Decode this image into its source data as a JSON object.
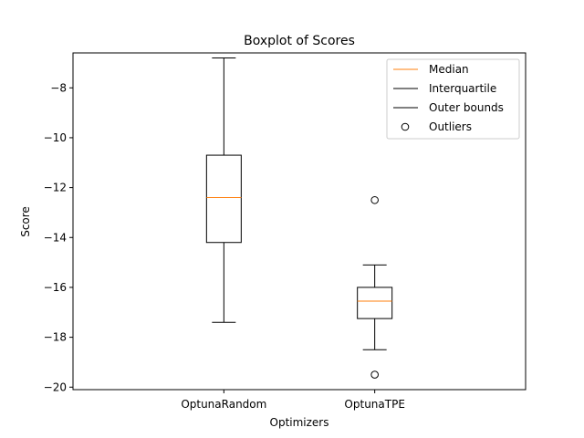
{
  "chart_data": {
    "type": "boxplot",
    "title": "Boxplot of Scores",
    "xlabel": "Optimizers",
    "ylabel": "Score",
    "ylim": [
      -20.1,
      -6.6
    ],
    "yticks": [
      -8,
      -10,
      -12,
      -14,
      -16,
      -18,
      -20
    ],
    "ytick_labels": [
      "−8",
      "−10",
      "−12",
      "−14",
      "−16",
      "−18",
      "−20"
    ],
    "categories": [
      "OptunaRandom",
      "OptunaTPE"
    ],
    "boxes": [
      {
        "label": "OptunaRandom",
        "whisker_low": -17.4,
        "q1": -14.2,
        "median": -12.4,
        "q3": -10.7,
        "whisker_high": -6.8,
        "outliers": []
      },
      {
        "label": "OptunaTPE",
        "whisker_low": -18.5,
        "q1": -17.25,
        "median": -16.55,
        "q3": -16.0,
        "whisker_high": -15.1,
        "outliers": [
          -12.5,
          -19.5
        ]
      }
    ],
    "legend": {
      "position": "top-right",
      "entries": [
        {
          "label": "Median",
          "marker": "line",
          "color": "#ff7f0e"
        },
        {
          "label": "Interquartile",
          "marker": "line",
          "color": "#000000"
        },
        {
          "label": "Outer bounds",
          "marker": "line",
          "color": "#000000"
        },
        {
          "label": "Outliers",
          "marker": "circle",
          "color": "#000000"
        }
      ]
    },
    "colors": {
      "median": "#ff7f0e",
      "box": "#000000"
    }
  }
}
